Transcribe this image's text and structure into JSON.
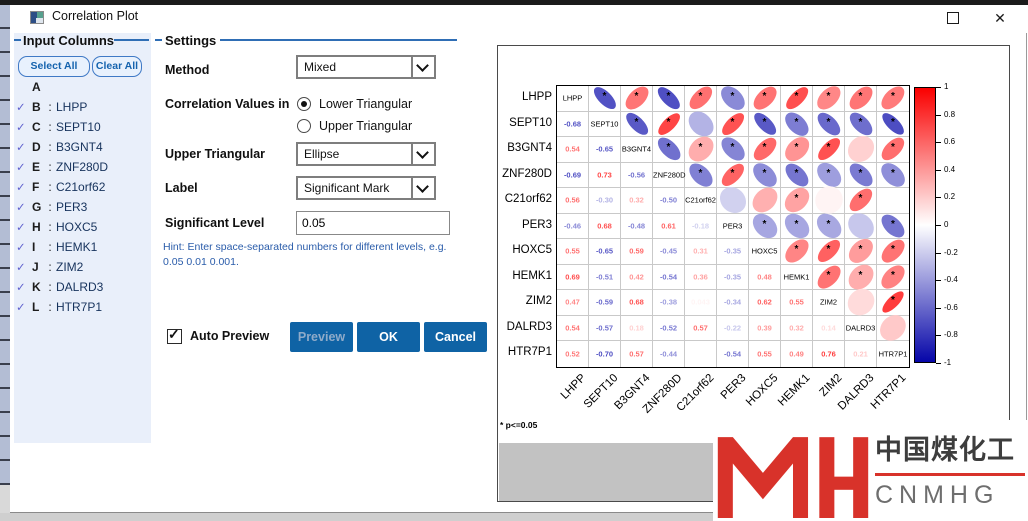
{
  "window": {
    "title": "Correlation Plot",
    "controls": {
      "maximize": "maximize",
      "close": "✕"
    }
  },
  "input_columns": {
    "header": "Input Columns",
    "select_all_label": "Select All",
    "clear_all_label": "Clear All",
    "items": [
      {
        "letter": "A",
        "name": "",
        "checked": false
      },
      {
        "letter": "B",
        "name": "LHPP",
        "checked": true
      },
      {
        "letter": "C",
        "name": "SEPT10",
        "checked": true
      },
      {
        "letter": "D",
        "name": "B3GNT4",
        "checked": true
      },
      {
        "letter": "E",
        "name": "ZNF280D",
        "checked": true
      },
      {
        "letter": "F",
        "name": "C21orf62",
        "checked": true
      },
      {
        "letter": "G",
        "name": "PER3",
        "checked": true
      },
      {
        "letter": "H",
        "name": "HOXC5",
        "checked": true
      },
      {
        "letter": "I",
        "name": "HEMK1",
        "checked": true
      },
      {
        "letter": "J",
        "name": "ZIM2",
        "checked": true
      },
      {
        "letter": "K",
        "name": "DALRD3",
        "checked": true
      },
      {
        "letter": "L",
        "name": "HTR7P1",
        "checked": true
      }
    ]
  },
  "settings": {
    "header": "Settings",
    "method_label": "Method",
    "method_value": "Mixed",
    "corr_values_label": "Correlation Values in",
    "radio_lower": "Lower Triangular",
    "radio_upper": "Upper Triangular",
    "selected_radio": "Lower Triangular",
    "upper_triangular_label": "Upper Triangular",
    "upper_triangular_value": "Ellipse",
    "label_label": "Label",
    "label_value": "Significant Mark",
    "significant_level_label": "Significant Level",
    "significant_level_value": "0.05",
    "hint": "Hint: Enter space-separated numbers for different levels, e.g. 0.05 0.01 0.001.",
    "auto_preview_label": "Auto Preview",
    "preview_label": "Preview",
    "ok_label": "OK",
    "cancel_label": "Cancel"
  },
  "chart_data": {
    "type": "heatmap",
    "title": "",
    "variables": [
      "LHPP",
      "SEPT10",
      "B3GNT4",
      "ZNF280D",
      "C21orf62",
      "PER3",
      "HOXC5",
      "HEMK1",
      "ZIM2",
      "DALRD3",
      "HTR7P1"
    ],
    "lower_triangle": [
      [],
      [
        "-0.68"
      ],
      [
        "0.54",
        "-0.65"
      ],
      [
        "-0.69",
        "0.73",
        "-0.56"
      ],
      [
        "0.56",
        "-0.30",
        "0.32",
        "-0.50"
      ],
      [
        "-0.46",
        "0.68",
        "-0.48",
        "0.61",
        "-0.18"
      ],
      [
        "0.55",
        "-0.65",
        "0.59",
        "-0.45",
        "0.31",
        "-0.35"
      ],
      [
        "0.69",
        "-0.51",
        "0.42",
        "-0.54",
        "0.36",
        "-0.35",
        "0.48"
      ],
      [
        "0.47",
        "-0.59",
        "0.68",
        "-0.38",
        "0.043",
        "-0.34",
        "0.62",
        "0.55"
      ],
      [
        "0.54",
        "-0.57",
        "0.18",
        "-0.52",
        "0.57",
        "-0.22",
        "0.39",
        "0.32",
        "0.14"
      ],
      [
        "0.52",
        "-0.70",
        "0.57",
        "-0.44",
        "",
        "-0.54",
        "0.55",
        "0.49",
        "0.76",
        "0.21"
      ]
    ],
    "display": {
      "upper": "ellipse with significance star",
      "lower": "correlation values",
      "diagonal": "variable names"
    },
    "significance_note": "* p<=0.05",
    "significance_star_threshold": 0.315,
    "colorbar": {
      "ticks": [
        "1",
        "0.8",
        "0.6",
        "0.4",
        "0.2",
        "0",
        "-0.2",
        "-0.4",
        "-0.6",
        "-0.8",
        "-1"
      ],
      "range": [
        -1,
        1
      ],
      "max_color": "#fa0000",
      "mid_color": "#ffffff",
      "min_color": "#0505a8",
      "position": "right"
    }
  },
  "watermark": {
    "logo": "MH",
    "cn_text": "中国煤化工",
    "en_text": "CNMHG",
    "accent_color": "#d8322a"
  },
  "theme": {
    "accent_line": "#2f6eb5",
    "button_blue": "#0f63a5",
    "hint_blue": "#2a5caa",
    "panel_blue": "#e9effa",
    "check_purple": "#6163cf"
  }
}
